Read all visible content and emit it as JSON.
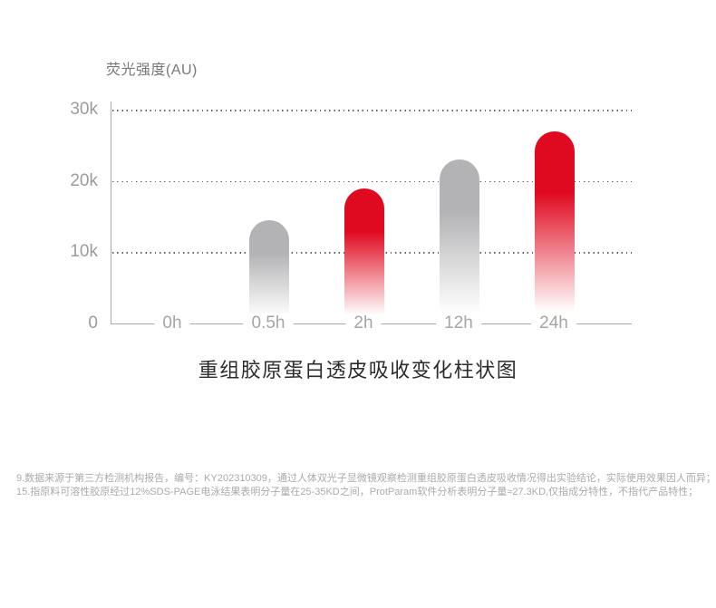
{
  "chart_data": {
    "type": "bar",
    "title": "重组胶原蛋白透皮吸收变化柱状图",
    "ylabel": "荧光强度(AU)",
    "xlabel": "",
    "categories": [
      "0h",
      "0.5h",
      "2h",
      "12h",
      "24h"
    ],
    "values": [
      0,
      14500,
      19000,
      23000,
      27000
    ],
    "bar_colors": [
      null,
      "#b3b3b5",
      "#e00a20",
      "#b3b3b5",
      "#e00a20"
    ],
    "yticks": [
      {
        "label": "30k",
        "value": 30000
      },
      {
        "label": "20k",
        "value": 20000
      },
      {
        "label": "10k",
        "value": 10000
      },
      {
        "label": "0",
        "value": 0
      }
    ],
    "ylim": [
      0,
      30000
    ],
    "grid": "horizontal-dotted",
    "legend_position": "none",
    "bar_style": "rounded-top-gradient-fade-to-white"
  },
  "footnotes": [
    "9.数据来源于第三方检测机构报告，编号：KY202310309，通过人体双光子显微镜观察检测重组胶原蛋白透皮吸收情况得出实验结论，实际使用效果因人而异；",
    "15.指原料可溶性胶原经过12%SDS-PAGE电泳结果表明分子量在25-35KD之间，ProtParam软件分析表明分子量≈27.3KD,仅指成分特性，不指代产品特性；"
  ],
  "colors": {
    "accent_red": "#e00a20",
    "bar_gray": "#b3b3b5",
    "axis_line": "#a9a9ab",
    "tick_text": "#9b9b9d",
    "grid_dot": "#666666",
    "title_text": "#2b2b2b",
    "ylabel_text": "#76777a",
    "footnote_text": "#aaaaaa"
  }
}
